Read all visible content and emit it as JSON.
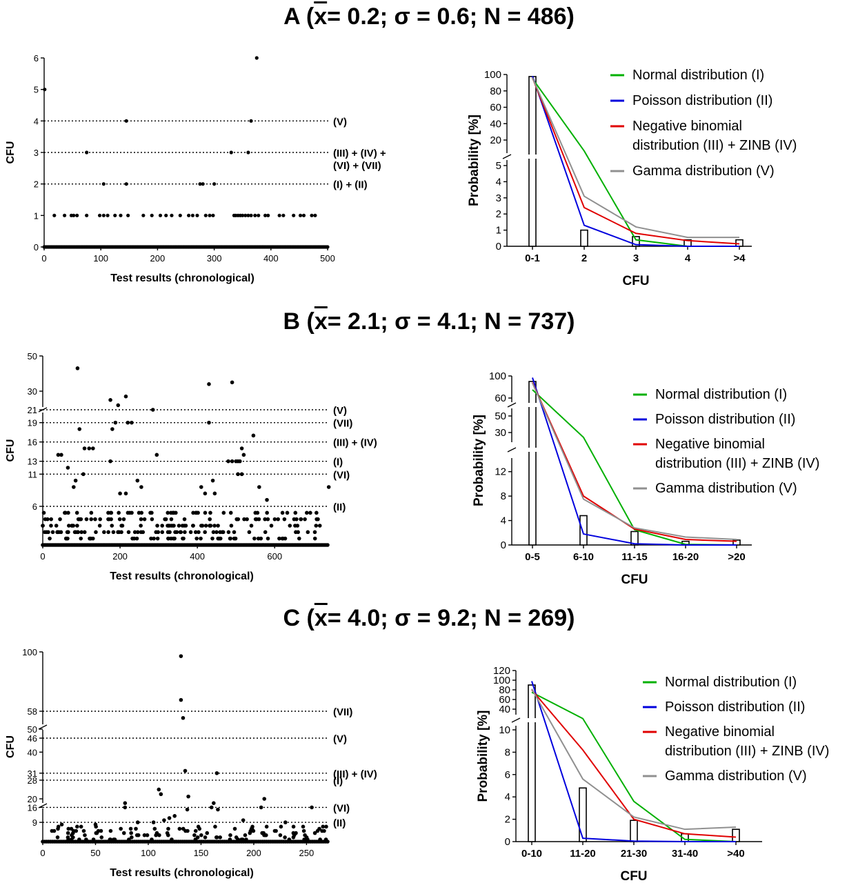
{
  "titles": {
    "A": {
      "letter": "A (",
      "xbar": "x",
      "rest": "= 0.2; σ = 0.6; N = 486)"
    },
    "B": {
      "letter": "B (",
      "xbar": "x",
      "rest": "= 2.1; σ = 4.1; N = 737)"
    },
    "C": {
      "letter": "C (",
      "xbar": "x",
      "rest": "= 4.0; σ = 9.2; N = 269)"
    }
  },
  "chart_data": [
    {
      "id": "A-scatter",
      "type": "scatter",
      "xlabel": "Test results (chronological)",
      "ylabel": "CFU",
      "xlim": [
        0,
        500
      ],
      "ylim": [
        0,
        6
      ],
      "x_ticks": [
        "0",
        "100",
        "200",
        "300",
        "400",
        "500"
      ],
      "y_ticks": [
        "0",
        "1",
        "2",
        "3",
        "4",
        "5",
        "6"
      ],
      "thresholds": [
        {
          "y": 4,
          "label": "(V)"
        },
        {
          "y": 3,
          "label": "(III) + (IV) +",
          "label2": "(VI) + (VII)"
        },
        {
          "y": 2,
          "label": "(I) + (II)"
        }
      ],
      "points": [
        [
          1,
          5
        ],
        [
          145,
          4
        ],
        [
          365,
          4
        ],
        [
          375,
          6
        ],
        [
          75,
          3
        ],
        [
          330,
          3
        ],
        [
          360,
          3
        ],
        [
          105,
          2
        ],
        [
          145,
          2
        ],
        [
          275,
          2
        ],
        [
          280,
          2
        ],
        [
          300,
          2
        ],
        [
          18,
          1
        ],
        [
          36,
          1
        ],
        [
          48,
          1
        ],
        [
          52,
          1
        ],
        [
          58,
          1
        ],
        [
          75,
          1
        ],
        [
          98,
          1
        ],
        [
          105,
          1
        ],
        [
          112,
          1
        ],
        [
          125,
          1
        ],
        [
          135,
          1
        ],
        [
          148,
          1
        ],
        [
          175,
          1
        ],
        [
          190,
          1
        ],
        [
          205,
          1
        ],
        [
          215,
          1
        ],
        [
          225,
          1
        ],
        [
          240,
          1
        ],
        [
          255,
          1
        ],
        [
          262,
          1
        ],
        [
          270,
          1
        ],
        [
          285,
          1
        ],
        [
          292,
          1
        ],
        [
          298,
          1
        ],
        [
          335,
          1
        ],
        [
          338,
          1
        ],
        [
          342,
          1
        ],
        [
          346,
          1
        ],
        [
          350,
          1
        ],
        [
          355,
          1
        ],
        [
          360,
          1
        ],
        [
          365,
          1
        ],
        [
          372,
          1
        ],
        [
          378,
          1
        ],
        [
          390,
          1
        ],
        [
          395,
          1
        ],
        [
          415,
          1
        ],
        [
          422,
          1
        ],
        [
          440,
          1
        ],
        [
          452,
          1
        ],
        [
          458,
          1
        ],
        [
          472,
          1
        ],
        [
          478,
          1
        ]
      ]
    },
    {
      "id": "A-prob",
      "type": "bar",
      "xlabel": "CFU",
      "ylabel": "Probability [%]",
      "categories": [
        "0-1",
        "2",
        "3",
        "4",
        ">4"
      ],
      "y_ticks_low": [
        "0",
        "1",
        "2",
        "3",
        "4",
        "5"
      ],
      "y_ticks_high": [
        "20",
        "40",
        "60",
        "80",
        "100"
      ],
      "observed": [
        97.5,
        1.0,
        0.6,
        0.4,
        0.4
      ],
      "series": [
        {
          "name": "Normal distribution (I)",
          "color": "#00b000",
          "values": [
            95,
            7.5,
            0.4,
            0,
            0
          ]
        },
        {
          "name": "Poisson distribution (II)",
          "color": "#0000dd",
          "values": [
            98,
            1.3,
            0.1,
            0,
            0
          ]
        },
        {
          "name": "Negative binomial",
          "name2": "distribution (III) + ZINB (IV)",
          "color": "#e00000",
          "values": [
            96,
            2.4,
            0.8,
            0.35,
            0.15
          ]
        },
        {
          "name": "Gamma distribution (V)",
          "color": "#909090",
          "values": [
            96,
            3.1,
            1.2,
            0.55,
            0.55
          ]
        }
      ]
    },
    {
      "id": "B-scatter",
      "type": "scatter",
      "xlabel": "Test results (chronological)",
      "ylabel": "CFU",
      "xlim": [
        0,
        737
      ],
      "y_ticks": [
        "6",
        "11",
        "13",
        "16",
        "19",
        "21",
        "30",
        "50"
      ],
      "thresholds": [
        {
          "y": 21,
          "label": "(V)"
        },
        {
          "y": 19,
          "label": "(VII)"
        },
        {
          "y": 16,
          "label": "(III) + (IV)"
        },
        {
          "y": 13,
          "label": "(I)"
        },
        {
          "y": 11,
          "label": "(VI)"
        },
        {
          "y": 6,
          "label": "(II)"
        }
      ],
      "points": [
        [
          90,
          43
        ],
        [
          430,
          34
        ],
        [
          490,
          35
        ],
        [
          175,
          25
        ],
        [
          195,
          22
        ],
        [
          215,
          27
        ],
        [
          285,
          21
        ],
        [
          180,
          18
        ],
        [
          188,
          19
        ],
        [
          220,
          19
        ],
        [
          230,
          19
        ],
        [
          430,
          19
        ],
        [
          545,
          17
        ],
        [
          95,
          18
        ],
        [
          515,
          15
        ],
        [
          108,
          15
        ],
        [
          120,
          15
        ],
        [
          130,
          15
        ],
        [
          40,
          14
        ],
        [
          48,
          14
        ],
        [
          295,
          14
        ],
        [
          175,
          13
        ],
        [
          480,
          13
        ],
        [
          490,
          13
        ],
        [
          500,
          13
        ],
        [
          505,
          13
        ],
        [
          510,
          13
        ],
        [
          520,
          14
        ],
        [
          105,
          11
        ],
        [
          505,
          11
        ],
        [
          515,
          11
        ],
        [
          65,
          12
        ],
        [
          85,
          10
        ],
        [
          410,
          9
        ],
        [
          440,
          10
        ],
        [
          560,
          9
        ],
        [
          740,
          9
        ],
        [
          80,
          9
        ],
        [
          200,
          8
        ],
        [
          215,
          8
        ],
        [
          245,
          10
        ],
        [
          255,
          9
        ],
        [
          420,
          8
        ],
        [
          445,
          8
        ],
        [
          580,
          7
        ]
      ]
    },
    {
      "id": "B-prob",
      "type": "bar",
      "xlabel": "CFU",
      "ylabel": "Probability [%]",
      "categories": [
        "0-5",
        "6-10",
        "11-15",
        "16-20",
        ">20"
      ],
      "y_ticks_low": [
        "0",
        "4",
        "8",
        "12"
      ],
      "y_ticks_mid": [
        "30",
        "50"
      ],
      "y_ticks_high": [
        "60",
        "100"
      ],
      "observed": [
        90,
        4.8,
        2.2,
        0.6,
        0.8
      ],
      "series": [
        {
          "name": "Normal distribution (I)",
          "color": "#00b000",
          "values": [
            75,
            22,
            2.5,
            0.1,
            0
          ]
        },
        {
          "name": "Poisson distribution (II)",
          "color": "#0000dd",
          "values": [
            97,
            1.8,
            0.2,
            0,
            0
          ]
        },
        {
          "name": "Negative binomial",
          "name2": "distribution (III) + ZINB (IV)",
          "color": "#e00000",
          "values": [
            88,
            8.0,
            2.6,
            0.9,
            0.6
          ]
        },
        {
          "name": "Gamma distribution (V)",
          "color": "#909090",
          "values": [
            87,
            7.5,
            2.8,
            1.3,
            0.9
          ]
        }
      ]
    },
    {
      "id": "C-scatter",
      "type": "scatter",
      "xlabel": "Test results (chronological)",
      "ylabel": "CFU",
      "xlim": [
        0,
        270
      ],
      "x_ticks": [
        "0",
        "50",
        "100",
        "150",
        "200",
        "250"
      ],
      "y_ticks": [
        "9",
        "16",
        "20",
        "28",
        "31",
        "40",
        "46",
        "50",
        "58",
        "100"
      ],
      "thresholds": [
        {
          "y": 58,
          "label": "(VII)"
        },
        {
          "y": 46,
          "label": "(V)"
        },
        {
          "y": 31,
          "label": "(III) + (IV)"
        },
        {
          "y": 28,
          "label": "(I)"
        },
        {
          "y": 16,
          "label": "(VI)"
        },
        {
          "y": 9,
          "label": "(II)"
        }
      ],
      "points": [
        [
          131,
          97
        ],
        [
          131,
          66
        ],
        [
          133,
          55
        ],
        [
          135,
          32
        ],
        [
          165,
          31
        ],
        [
          110,
          24
        ],
        [
          112,
          22
        ],
        [
          138,
          21
        ],
        [
          210,
          20
        ],
        [
          78,
          18
        ],
        [
          162,
          18
        ],
        [
          78,
          16
        ],
        [
          137,
          15
        ],
        [
          160,
          16
        ],
        [
          166,
          15
        ],
        [
          207,
          16
        ],
        [
          255,
          16
        ],
        [
          120,
          11
        ],
        [
          125,
          12
        ],
        [
          115,
          10
        ],
        [
          105,
          9
        ],
        [
          90,
          9
        ],
        [
          50,
          8
        ],
        [
          18,
          8
        ],
        [
          190,
          10
        ],
        [
          230,
          9
        ]
      ]
    },
    {
      "id": "C-prob",
      "type": "bar",
      "xlabel": "CFU",
      "ylabel": "Probability [%]",
      "categories": [
        "0-10",
        "11-20",
        "21-30",
        "31-40",
        ">40"
      ],
      "y_ticks_low": [
        "0",
        "2",
        "4",
        "6",
        "8",
        "10"
      ],
      "y_ticks_high": [
        "40",
        "60",
        "80",
        "100",
        "120"
      ],
      "observed": [
        90,
        4.8,
        1.9,
        0.7,
        1.1
      ],
      "series": [
        {
          "name": "Normal distribution (I)",
          "color": "#00b000",
          "values": [
            75,
            10.8,
            3.6,
            0.2,
            0
          ]
        },
        {
          "name": "Poisson distribution (II)",
          "color": "#0000dd",
          "values": [
            98,
            0.3,
            0.05,
            0,
            0
          ]
        },
        {
          "name": "Negative binomial",
          "name2": "distribution (III) + ZINB (IV)",
          "color": "#e00000",
          "values": [
            80,
            8.2,
            2.0,
            0.7,
            0.4
          ]
        },
        {
          "name": "Gamma distribution (V)",
          "color": "#909090",
          "values": [
            82,
            5.6,
            2.2,
            1.1,
            1.3
          ]
        }
      ]
    }
  ]
}
